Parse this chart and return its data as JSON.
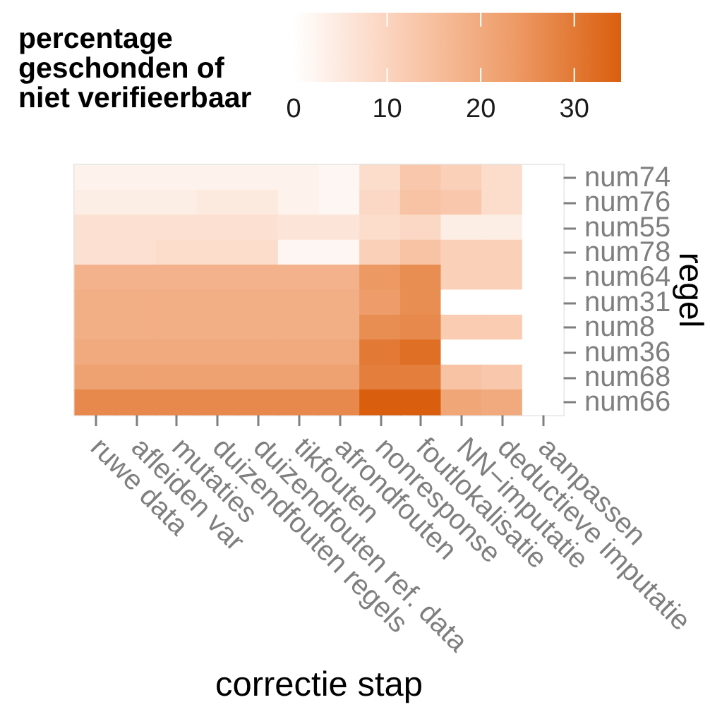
{
  "chart_data": {
    "type": "heatmap",
    "xlabel": "correctie stap",
    "ylabel": "regel",
    "clabel": "percentage\ngeschonden of\nniet verifieerbaar",
    "categories": [
      "ruwe data",
      "afleiden var",
      "mutaties",
      "duizendfouten regels",
      "duizendfouten ref. data",
      "tikfouten",
      "afrondfouten",
      "nonresponse",
      "foutlokalisatie",
      "NN−imputatie",
      "deductieve imputatie",
      "aanpassen"
    ],
    "y_categories": [
      "num74",
      "num76",
      "num55",
      "num78",
      "num64",
      "num31",
      "num8",
      "num36",
      "num68",
      "num66"
    ],
    "cells": [
      [
        3,
        3,
        3,
        3,
        3,
        3,
        2,
        8,
        13,
        11,
        8,
        0
      ],
      [
        4,
        4,
        4,
        5,
        5,
        3,
        2,
        9,
        14,
        13,
        8,
        0
      ],
      [
        7,
        7,
        7,
        7,
        7,
        6,
        6,
        8,
        9,
        4,
        4,
        0
      ],
      [
        7,
        7,
        8,
        8,
        8,
        2,
        2,
        11,
        14,
        11,
        11,
        0
      ],
      [
        18,
        18,
        18,
        18,
        18,
        18,
        18,
        24,
        26,
        11,
        11,
        0
      ],
      [
        19,
        19,
        19,
        19,
        19,
        19,
        19,
        23,
        26,
        0,
        0,
        0
      ],
      [
        19,
        19,
        19,
        19,
        19,
        19,
        19,
        26,
        27,
        12,
        12,
        0
      ],
      [
        20,
        20,
        20,
        20,
        20,
        20,
        20,
        30,
        32,
        0,
        0,
        0
      ],
      [
        22,
        22,
        22,
        22,
        22,
        22,
        22,
        29,
        29,
        14,
        13,
        0
      ],
      [
        27,
        27,
        27,
        27,
        27,
        27,
        27,
        35,
        35,
        21,
        20,
        0
      ]
    ],
    "clim": [
      0,
      35
    ],
    "cticks": [
      0,
      10,
      20,
      30
    ]
  }
}
